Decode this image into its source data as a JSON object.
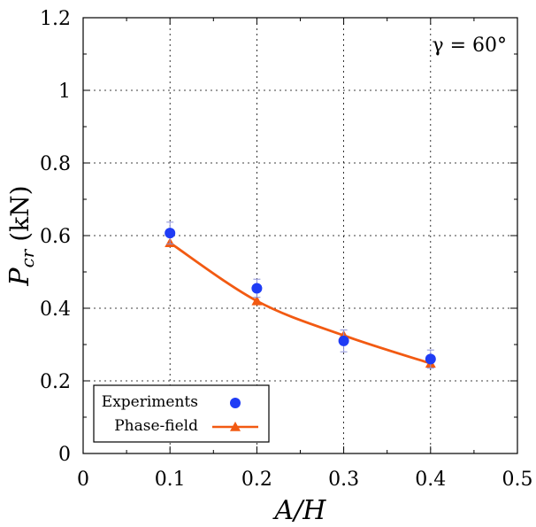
{
  "chart_data": {
    "type": "scatter",
    "title": "",
    "xlabel_main": "A/H",
    "ylabel_main": "P",
    "ylabel_sub": "cr",
    "ylabel_unit": " (kN)",
    "xlim": [
      0,
      0.5
    ],
    "ylim": [
      0,
      1.2
    ],
    "xticks": [
      0,
      0.1,
      0.2,
      0.3,
      0.4,
      0.5
    ],
    "xtick_labels": [
      "0",
      "0.1",
      "0.2",
      "0.3",
      "0.4",
      "0.5"
    ],
    "yticks": [
      0,
      0.2,
      0.4,
      0.6,
      0.8,
      1.0,
      1.2
    ],
    "ytick_labels": [
      "0",
      "0.2",
      "0.4",
      "0.6",
      "0.8",
      "1",
      "1.2"
    ],
    "annotation": "γ = 60°",
    "legend_position": "bottom-left",
    "series": [
      {
        "name": "Experiments",
        "kind": "scatter",
        "color": "#1f3cf5",
        "x": [
          0.1,
          0.2,
          0.3,
          0.4
        ],
        "y": [
          0.607,
          0.455,
          0.31,
          0.26
        ],
        "err": [
          0.03,
          0.025,
          0.03,
          0.025
        ]
      },
      {
        "name": "Phase-field",
        "kind": "line",
        "color": "#f25a12",
        "x": [
          0.1,
          0.2,
          0.3,
          0.4
        ],
        "y": [
          0.58,
          0.42,
          0.325,
          0.248
        ]
      }
    ]
  }
}
